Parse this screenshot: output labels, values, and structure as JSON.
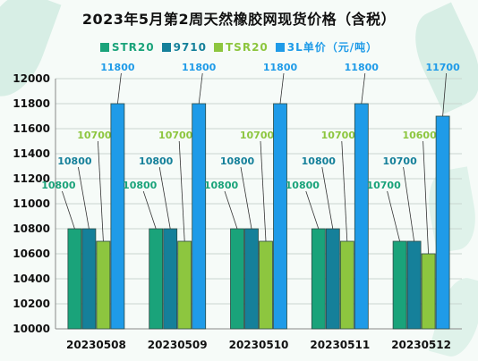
{
  "chart_data": {
    "type": "bar",
    "title": "2023年5月第2周天然橡胶网现货价格（含税）",
    "categories": [
      "20230508",
      "20230509",
      "20230510",
      "20230511",
      "20230512"
    ],
    "series": [
      {
        "name": "STR20",
        "color": "#1aa37a",
        "values": [
          10800,
          10800,
          10800,
          10800,
          10700
        ]
      },
      {
        "name": "9710",
        "color": "#15809a",
        "values": [
          10800,
          10800,
          10800,
          10800,
          10700
        ]
      },
      {
        "name": "TSR20",
        "color": "#8dc63f",
        "values": [
          10700,
          10700,
          10700,
          10700,
          10600
        ]
      },
      {
        "name": "3L单价（元/吨）",
        "color": "#1f9be8",
        "values": [
          11800,
          11800,
          11800,
          11800,
          11700
        ]
      }
    ],
    "ylim": [
      10000,
      12000
    ],
    "yticks": [
      10000,
      10200,
      10400,
      10600,
      10800,
      11000,
      11200,
      11400,
      11600,
      11800,
      12000
    ],
    "label_colors": [
      "#1aa37a",
      "#15809a",
      "#8dc63f",
      "#1f9be8"
    ]
  }
}
